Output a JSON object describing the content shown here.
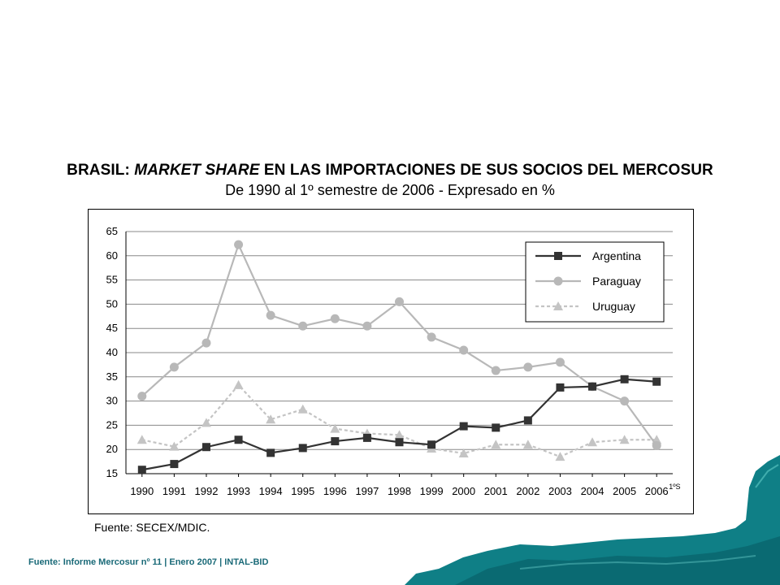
{
  "title_prefix": "BRASIL: ",
  "title_emphasis": "MARKET SHARE",
  "title_suffix": " EN LAS IMPORTACIONES DE SUS SOCIOS DEL MERCOSUR",
  "subtitle": "De 1990 al 1º semestre de 2006 - Expresado en %",
  "source_note": "Fuente: SECEX/MDIC.",
  "footer_credit": "Fuente: Informe Mercosur nº 11  | Enero 2007 |  INTAL-BID",
  "chart_data": {
    "type": "line",
    "x": [
      "1990",
      "1991",
      "1992",
      "1993",
      "1994",
      "1995",
      "1996",
      "1997",
      "1998",
      "1999",
      "2000",
      "2001",
      "2002",
      "2003",
      "2004",
      "2005",
      "2006"
    ],
    "last_tick_note": "1ºS",
    "ylim": [
      15,
      65
    ],
    "yticks": [
      15,
      20,
      25,
      30,
      35,
      40,
      45,
      50,
      55,
      60,
      65
    ],
    "grid": true,
    "legend_position": "top-right",
    "series": [
      {
        "name": "Argentina",
        "color": "#333333",
        "marker": "square",
        "dash": "solid",
        "values": [
          15.8,
          17.0,
          20.5,
          22.0,
          19.3,
          20.3,
          21.7,
          22.4,
          21.5,
          21.0,
          24.8,
          24.5,
          26.0,
          32.8,
          33.0,
          34.5,
          34.0
        ]
      },
      {
        "name": "Paraguay",
        "color": "#b8b8b8",
        "marker": "circle",
        "dash": "solid",
        "values": [
          31.0,
          37.0,
          42.0,
          62.3,
          47.7,
          45.5,
          47.0,
          45.5,
          50.5,
          43.2,
          40.5,
          36.3,
          37.0,
          38.0,
          33.0,
          30.0,
          20.8
        ]
      },
      {
        "name": "Uruguay",
        "color": "#c4c4c4",
        "marker": "triangle",
        "dash": "dotted",
        "values": [
          22.0,
          20.6,
          25.5,
          33.3,
          26.2,
          28.3,
          24.3,
          23.3,
          23.0,
          20.2,
          19.2,
          21.0,
          21.0,
          18.5,
          21.5,
          22.0,
          22.0
        ]
      }
    ]
  }
}
